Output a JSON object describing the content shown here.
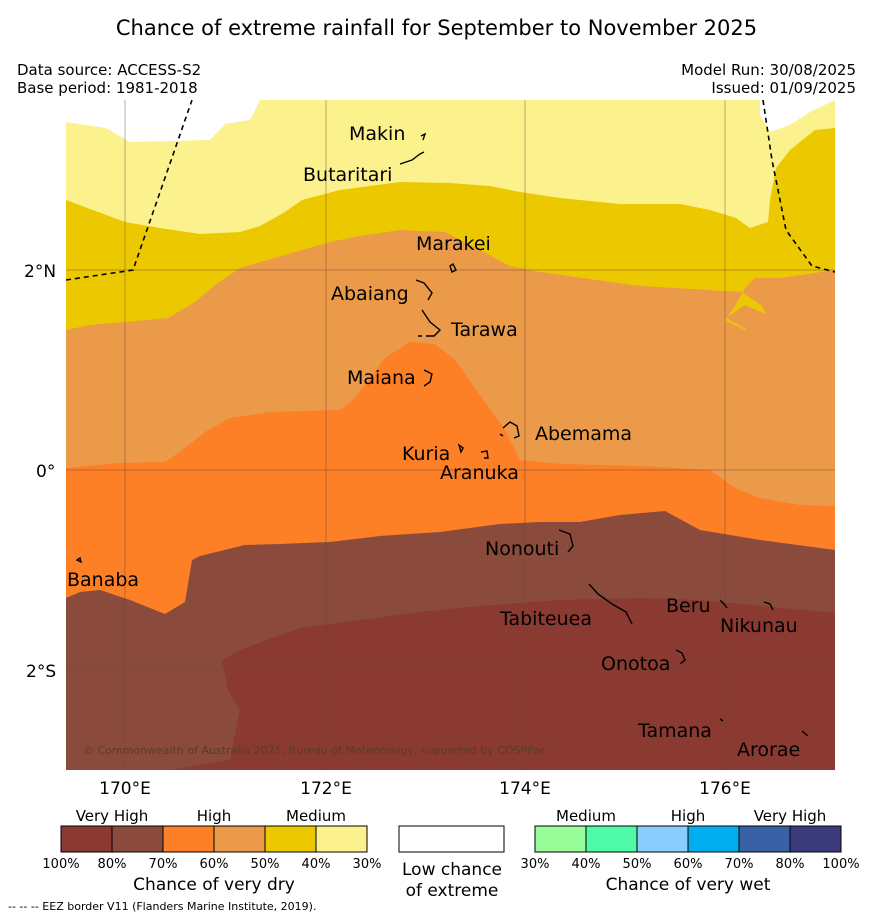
{
  "title": "Chance of extreme rainfall for September to November 2025",
  "meta": {
    "data_source": "Data source: ACCESS-S2",
    "base_period": "Base period: 1981-2018",
    "model_run": "Model Run: 30/08/2025",
    "issued": "Issued: 01/09/2025"
  },
  "map": {
    "places": {
      "makin": "Makin",
      "butaritari": "Butaritari",
      "marakei": "Marakei",
      "abaiang": "Abaiang",
      "tarawa": "Tarawa",
      "maiana": "Maiana",
      "abemama": "Abemama",
      "kuria": "Kuria",
      "aranuka": "Aranuka",
      "nonouti": "Nonouti",
      "banaba": "Banaba",
      "tabiteuea": "Tabiteuea",
      "beru": "Beru",
      "nikunau": "Nikunau",
      "onotoa": "Onotoa",
      "tamana": "Tamana",
      "arorae": "Arorae"
    },
    "lat_ticks": {
      "n2": "2°N",
      "eq": "0°",
      "s2": "2°S"
    },
    "lon_ticks": {
      "e170": "170°E",
      "e172": "172°E",
      "e174": "174°E",
      "e176": "176°E"
    },
    "copyright": "© Commonwealth of Australia 2025, Bureau of Meteorology, supported by COSPPac",
    "colors": {
      "dry_100_80": "#8a3a30",
      "dry_80_70": "#8a4a3c",
      "dry_70_60": "#fd7f26",
      "dry_60_50": "#eb9a4a",
      "dry_50_40": "#ecc800",
      "dry_40_30": "#fbf28e",
      "low": "#ffffff",
      "wet_30_40": "#98fd98",
      "wet_40_50": "#4efaa8",
      "wet_50_60": "#8accfd",
      "wet_60_70": "#00aeef",
      "wet_70_80": "#3961a6",
      "wet_80_100": "#3c3c7c"
    }
  },
  "legend": {
    "dry": {
      "category_labels": [
        "Very High",
        "High",
        "Medium"
      ],
      "ticks": [
        "100%",
        "80%",
        "70%",
        "60%",
        "50%",
        "40%",
        "30%"
      ],
      "caption": "Chance of very dry"
    },
    "low": {
      "line1": "Low chance",
      "line2": "of extreme"
    },
    "wet": {
      "category_labels": [
        "Medium",
        "High",
        "Very High"
      ],
      "ticks": [
        "30%",
        "40%",
        "50%",
        "60%",
        "70%",
        "80%",
        "100%"
      ],
      "caption": "Chance of very wet"
    }
  },
  "footnote": "--  --  -- EEZ border V11 (Flanders Marine Institute, 2019)."
}
